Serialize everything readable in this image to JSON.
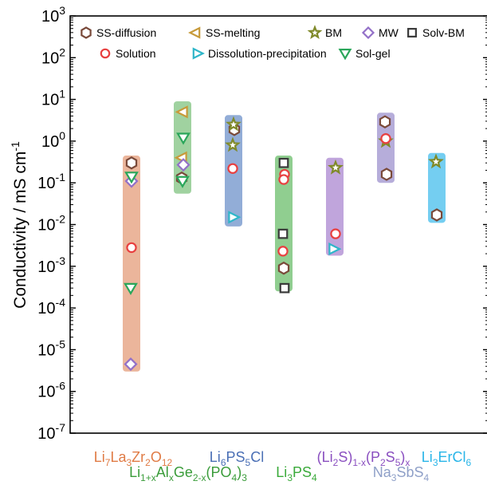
{
  "chart_data": {
    "type": "scatter",
    "title": "",
    "xlabel": "",
    "ylabel": "Conductivity / mS cm-1",
    "yscale": "log",
    "ylim": [
      1e-07,
      1000
    ],
    "ytick_exponents": [
      "3",
      "2",
      "1",
      "0",
      "-1",
      "-2",
      "-3",
      "-4",
      "-5",
      "-6",
      "-7"
    ],
    "grid": false,
    "legend_placement": "top",
    "categories": [
      {
        "id": "llzo",
        "label_parts": [
          [
            "Li",
            ""
          ],
          [
            "7",
            "sub"
          ],
          [
            "La",
            ""
          ],
          [
            "3",
            "sub"
          ],
          [
            "Zr",
            ""
          ],
          [
            "2",
            "sub"
          ],
          [
            "O",
            ""
          ],
          [
            "12",
            "sub"
          ]
        ],
        "color": "#e07b45",
        "band_color": "#e8a88a",
        "range": [
          3e-06,
          0.45
        ]
      },
      {
        "id": "lagp",
        "label_parts": [
          [
            "Li",
            ""
          ],
          [
            "1+x",
            "sub"
          ],
          [
            "Al",
            ""
          ],
          [
            "x",
            "sub"
          ],
          [
            "Ge",
            ""
          ],
          [
            "2-x",
            "sub"
          ],
          [
            "(PO",
            ""
          ],
          [
            "4",
            "sub"
          ],
          [
            ")",
            ""
          ],
          [
            "3",
            "sub"
          ]
        ],
        "color": "#3a9c3a",
        "band_color": "#8fca8f",
        "range": [
          0.055,
          9
        ]
      },
      {
        "id": "lpscl",
        "label_parts": [
          [
            "Li",
            ""
          ],
          [
            "6",
            "sub"
          ],
          [
            "PS",
            ""
          ],
          [
            "5",
            "sub"
          ],
          [
            "Cl",
            ""
          ]
        ],
        "color": "#4a6fb5",
        "band_color": "#7f9fd0",
        "range": [
          0.009,
          4.2
        ]
      },
      {
        "id": "lps",
        "label_parts": [
          [
            "Li",
            ""
          ],
          [
            "3",
            "sub"
          ],
          [
            "PS",
            ""
          ],
          [
            "4",
            "sub"
          ]
        ],
        "color": "#3aaa3a",
        "band_color": "#7dc67d",
        "range": [
          0.00025,
          0.45
        ]
      },
      {
        "id": "lsps",
        "label_parts": [
          [
            "(Li",
            ""
          ],
          [
            "2",
            "sub"
          ],
          [
            "S)",
            ""
          ],
          [
            "1-x",
            "sub"
          ],
          [
            "(P",
            ""
          ],
          [
            "2",
            "sub"
          ],
          [
            "S",
            ""
          ],
          [
            "5",
            "sub"
          ],
          [
            ")",
            ""
          ],
          [
            "x",
            "sub"
          ]
        ],
        "color": "#8a4fc0",
        "band_color": "#b595d6",
        "range": [
          0.0018,
          0.4
        ]
      },
      {
        "id": "nass",
        "label_parts": [
          [
            "Na",
            ""
          ],
          [
            "3",
            "sub"
          ],
          [
            "SbS",
            ""
          ],
          [
            "4",
            "sub"
          ]
        ],
        "color": "#8fa0c8",
        "band_color": "#a99fd4",
        "range": [
          0.1,
          4.8
        ]
      },
      {
        "id": "lecl",
        "label_parts": [
          [
            "Li",
            ""
          ],
          [
            "3",
            "sub"
          ],
          [
            "ErCl",
            ""
          ],
          [
            "6",
            "sub"
          ]
        ],
        "color": "#29b5e8",
        "band_color": "#5cc6ee",
        "range": [
          0.011,
          0.52
        ]
      }
    ],
    "series": [
      {
        "name": "SS-diffusion",
        "marker": "hexagon",
        "color": "#7a4a3a",
        "points": [
          {
            "cat": "llzo",
            "y": 0.3
          },
          {
            "cat": "lagp",
            "y": 0.13
          },
          {
            "cat": "lpscl",
            "y": 1.9
          },
          {
            "cat": "lps",
            "y": 0.0009
          },
          {
            "cat": "nass",
            "y": 2.9
          },
          {
            "cat": "nass",
            "y": 0.16
          },
          {
            "cat": "lecl",
            "y": 0.017
          }
        ]
      },
      {
        "name": "SS-melting",
        "marker": "triangle-left",
        "color": "#c79a3a",
        "points": [
          {
            "cat": "lagp",
            "y": 5
          },
          {
            "cat": "lagp",
            "y": 0.4
          }
        ]
      },
      {
        "name": "BM",
        "marker": "star",
        "color": "#808a2a",
        "points": [
          {
            "cat": "lpscl",
            "y": 2.5
          },
          {
            "cat": "lpscl",
            "y": 0.8
          },
          {
            "cat": "lsps",
            "y": 0.23
          },
          {
            "cat": "nass",
            "y": 1.0
          },
          {
            "cat": "lecl",
            "y": 0.32
          }
        ]
      },
      {
        "name": "MW",
        "marker": "diamond",
        "color": "#9370c8",
        "points": [
          {
            "cat": "llzo",
            "y": 0.11
          },
          {
            "cat": "llzo",
            "y": 4.5e-06
          },
          {
            "cat": "lagp",
            "y": 0.27
          }
        ]
      },
      {
        "name": "Solv-BM",
        "marker": "square",
        "color": "#3a3a3a",
        "points": [
          {
            "cat": "lps",
            "y": 0.3
          },
          {
            "cat": "lps",
            "y": 0.006
          },
          {
            "cat": "lps",
            "y": 0.0003
          }
        ]
      },
      {
        "name": "Solution",
        "marker": "circle",
        "color": "#e84040",
        "points": [
          {
            "cat": "llzo",
            "y": 0.0028
          },
          {
            "cat": "lpscl",
            "y": 0.22
          },
          {
            "cat": "lps",
            "y": 0.16
          },
          {
            "cat": "lps",
            "y": 0.12
          },
          {
            "cat": "lps",
            "y": 0.0023
          },
          {
            "cat": "lsps",
            "y": 0.006
          },
          {
            "cat": "nass",
            "y": 1.15
          }
        ]
      },
      {
        "name": "Dissolution-precipitation",
        "marker": "triangle-right",
        "color": "#2fb6c9",
        "points": [
          {
            "cat": "lpscl",
            "y": 0.015
          },
          {
            "cat": "lsps",
            "y": 0.0026
          }
        ]
      },
      {
        "name": "Sol-gel",
        "marker": "triangle-down",
        "color": "#2aa65a",
        "points": [
          {
            "cat": "llzo",
            "y": 0.14
          },
          {
            "cat": "llzo",
            "y": 0.0003
          },
          {
            "cat": "lagp",
            "y": 1.2
          },
          {
            "cat": "lagp",
            "y": 0.11
          }
        ]
      }
    ]
  }
}
